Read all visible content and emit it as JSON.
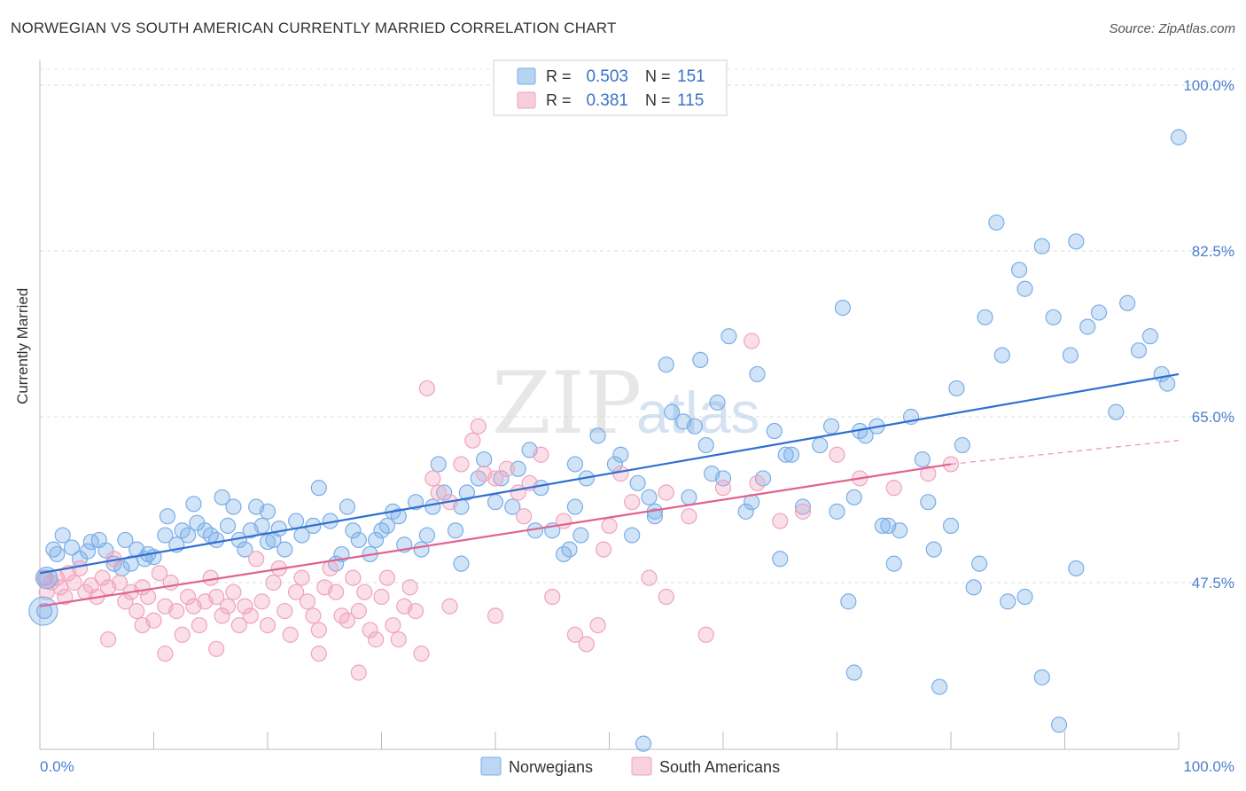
{
  "header": {
    "title": "NORWEGIAN VS SOUTH AMERICAN CURRENTLY MARRIED CORRELATION CHART",
    "source": "Source: ZipAtlas.com"
  },
  "watermark": {
    "zip": "ZIP",
    "atlas": "atlas"
  },
  "chart_data": {
    "type": "scatter",
    "ylabel": "Currently Married",
    "xlim": [
      0,
      100
    ],
    "ylim": [
      30,
      100
    ],
    "x_tick_labels": [
      "0.0%",
      "100.0%"
    ],
    "y_ticks": [
      47.5,
      65.0,
      82.5,
      100.0
    ],
    "y_tick_labels": [
      "47.5%",
      "65.0%",
      "82.5%",
      "100.0%"
    ],
    "grid": true,
    "legend_position": "top-center",
    "series": [
      {
        "name": "Norwegians",
        "color": "#7aaee8",
        "line_color": "#2f6fd0",
        "R": "0.503",
        "N": "151",
        "trend": {
          "x0": 0,
          "y0": 48.5,
          "x1": 100,
          "y1": 69.5
        },
        "points": [
          [
            0.4,
            44.5
          ],
          [
            0.5,
            48.0
          ],
          [
            1.2,
            51.0
          ],
          [
            1.5,
            50.5
          ],
          [
            2.0,
            52.5
          ],
          [
            2.8,
            51.2
          ],
          [
            3.5,
            50.0
          ],
          [
            4.2,
            50.8
          ],
          [
            4.5,
            51.8
          ],
          [
            5.2,
            52.0
          ],
          [
            5.8,
            50.9
          ],
          [
            6.5,
            49.5
          ],
          [
            7.2,
            49.0
          ],
          [
            7.5,
            52.0
          ],
          [
            8.5,
            51.0
          ],
          [
            9.2,
            50.0
          ],
          [
            10.0,
            50.2
          ],
          [
            11.0,
            52.5
          ],
          [
            11.2,
            54.5
          ],
          [
            12.0,
            51.5
          ],
          [
            12.5,
            53.0
          ],
          [
            13.0,
            52.5
          ],
          [
            13.5,
            55.8
          ],
          [
            13.8,
            53.8
          ],
          [
            14.5,
            53.0
          ],
          [
            15.0,
            52.5
          ],
          [
            15.5,
            52.0
          ],
          [
            16.5,
            53.5
          ],
          [
            17.0,
            55.5
          ],
          [
            17.5,
            52.0
          ],
          [
            18.0,
            51.0
          ],
          [
            18.5,
            53.0
          ],
          [
            19.0,
            55.5
          ],
          [
            19.5,
            53.5
          ],
          [
            20.0,
            51.8
          ],
          [
            20.5,
            52.0
          ],
          [
            21.0,
            53.2
          ],
          [
            21.5,
            51.0
          ],
          [
            22.5,
            54.0
          ],
          [
            23.0,
            52.5
          ],
          [
            24.0,
            53.5
          ],
          [
            24.5,
            57.5
          ],
          [
            25.5,
            54.0
          ],
          [
            26.0,
            49.5
          ],
          [
            27.0,
            55.5
          ],
          [
            27.5,
            53.0
          ],
          [
            28.0,
            52.0
          ],
          [
            29.0,
            50.5
          ],
          [
            29.5,
            52.0
          ],
          [
            30.5,
            53.5
          ],
          [
            31.0,
            55.0
          ],
          [
            31.5,
            54.5
          ],
          [
            32.0,
            51.5
          ],
          [
            33.0,
            56.0
          ],
          [
            34.0,
            52.5
          ],
          [
            34.5,
            55.5
          ],
          [
            35.0,
            60.0
          ],
          [
            35.5,
            57.0
          ],
          [
            36.5,
            53.0
          ],
          [
            37.0,
            55.5
          ],
          [
            37.5,
            57.0
          ],
          [
            38.5,
            58.5
          ],
          [
            39.0,
            60.5
          ],
          [
            40.0,
            56.0
          ],
          [
            40.5,
            58.5
          ],
          [
            41.5,
            55.5
          ],
          [
            42.0,
            59.5
          ],
          [
            43.0,
            61.5
          ],
          [
            44.0,
            57.5
          ],
          [
            45.0,
            53.0
          ],
          [
            46.0,
            50.5
          ],
          [
            47.0,
            55.5
          ],
          [
            47.5,
            52.5
          ],
          [
            48.0,
            58.5
          ],
          [
            49.0,
            63.0
          ],
          [
            50.5,
            60.0
          ],
          [
            51.0,
            61.0
          ],
          [
            52.0,
            52.5
          ],
          [
            52.5,
            58.0
          ],
          [
            53.5,
            56.5
          ],
          [
            54.0,
            55.0
          ],
          [
            55.0,
            70.5
          ],
          [
            55.5,
            65.5
          ],
          [
            56.5,
            64.5
          ],
          [
            57.0,
            56.5
          ],
          [
            57.5,
            64.0
          ],
          [
            58.5,
            62.0
          ],
          [
            59.0,
            59.0
          ],
          [
            60.0,
            58.5
          ],
          [
            60.5,
            73.5
          ],
          [
            62.0,
            55.0
          ],
          [
            62.5,
            56.0
          ],
          [
            63.0,
            69.5
          ],
          [
            63.5,
            58.5
          ],
          [
            64.5,
            63.5
          ],
          [
            65.0,
            50.0
          ],
          [
            66.0,
            61.0
          ],
          [
            67.0,
            55.5
          ],
          [
            68.5,
            62.0
          ],
          [
            69.5,
            64.0
          ],
          [
            70.0,
            55.0
          ],
          [
            70.5,
            76.5
          ],
          [
            71.5,
            56.5
          ],
          [
            71.0,
            45.5
          ],
          [
            72.0,
            63.5
          ],
          [
            72.5,
            63.0
          ],
          [
            73.5,
            64.0
          ],
          [
            74.0,
            53.5
          ],
          [
            75.0,
            49.5
          ],
          [
            75.5,
            53.0
          ],
          [
            76.5,
            65.0
          ],
          [
            77.5,
            60.5
          ],
          [
            78.0,
            56.0
          ],
          [
            78.5,
            51.0
          ],
          [
            79.0,
            36.5
          ],
          [
            80.0,
            53.5
          ],
          [
            80.5,
            68.0
          ],
          [
            81.0,
            62.0
          ],
          [
            82.0,
            47.0
          ],
          [
            82.5,
            49.5
          ],
          [
            83.0,
            75.5
          ],
          [
            84.0,
            85.5
          ],
          [
            84.5,
            71.5
          ],
          [
            86.0,
            80.5
          ],
          [
            86.5,
            78.5
          ],
          [
            88.0,
            83.0
          ],
          [
            89.0,
            75.5
          ],
          [
            90.5,
            71.5
          ],
          [
            91.0,
            83.5
          ],
          [
            92.0,
            74.5
          ],
          [
            93.0,
            76.0
          ],
          [
            94.5,
            65.5
          ],
          [
            95.5,
            77.0
          ],
          [
            96.5,
            72.0
          ],
          [
            97.5,
            73.5
          ],
          [
            98.5,
            69.5
          ],
          [
            99.0,
            68.5
          ],
          [
            100.0,
            94.5
          ],
          [
            46.5,
            51.0
          ],
          [
            43.5,
            53.0
          ],
          [
            37.0,
            49.5
          ],
          [
            33.5,
            51.0
          ],
          [
            30.0,
            53.0
          ],
          [
            26.5,
            50.5
          ],
          [
            20.0,
            55.0
          ],
          [
            16.0,
            56.5
          ],
          [
            8.0,
            49.5
          ],
          [
            9.5,
            50.5
          ],
          [
            47.0,
            60.0
          ],
          [
            54.0,
            54.5
          ],
          [
            59.5,
            66.5
          ],
          [
            58.0,
            71.0
          ],
          [
            65.5,
            61.0
          ],
          [
            74.5,
            53.5
          ],
          [
            86.5,
            46.0
          ],
          [
            88.0,
            37.5
          ],
          [
            89.5,
            32.5
          ],
          [
            85.0,
            45.5
          ],
          [
            91.0,
            49.0
          ],
          [
            71.5,
            38.0
          ],
          [
            53.0,
            30.5
          ]
        ]
      },
      {
        "name": "South Americans",
        "color": "#f0a3bd",
        "line_color": "#e0628e",
        "R": "0.381",
        "N": "115",
        "trend": {
          "x0": 0,
          "y0": 45.0,
          "x1": 80,
          "y1": 60.0
        },
        "trend_ext": {
          "x0": 80,
          "y0": 60.0,
          "x1": 100,
          "y1": 62.5
        },
        "points": [
          [
            0.3,
            48.0
          ],
          [
            0.6,
            46.5
          ],
          [
            1.0,
            47.5
          ],
          [
            1.5,
            48.0
          ],
          [
            1.8,
            47.0
          ],
          [
            2.2,
            46.0
          ],
          [
            2.5,
            48.5
          ],
          [
            3.0,
            47.5
          ],
          [
            3.5,
            49.0
          ],
          [
            4.0,
            46.5
          ],
          [
            4.5,
            47.2
          ],
          [
            5.0,
            46.0
          ],
          [
            5.5,
            48.0
          ],
          [
            6.0,
            47.0
          ],
          [
            6.5,
            50.0
          ],
          [
            7.0,
            47.5
          ],
          [
            7.5,
            45.5
          ],
          [
            8.0,
            46.5
          ],
          [
            8.5,
            44.5
          ],
          [
            9.0,
            47.0
          ],
          [
            9.5,
            46.0
          ],
          [
            10.0,
            43.5
          ],
          [
            10.5,
            48.5
          ],
          [
            11.0,
            45.0
          ],
          [
            11.5,
            47.5
          ],
          [
            12.0,
            44.5
          ],
          [
            12.5,
            42.0
          ],
          [
            13.0,
            46.0
          ],
          [
            13.5,
            45.0
          ],
          [
            14.0,
            43.0
          ],
          [
            14.5,
            45.5
          ],
          [
            15.0,
            48.0
          ],
          [
            15.5,
            46.0
          ],
          [
            16.0,
            44.0
          ],
          [
            16.5,
            45.0
          ],
          [
            17.0,
            46.5
          ],
          [
            17.5,
            43.0
          ],
          [
            18.0,
            45.0
          ],
          [
            18.5,
            44.0
          ],
          [
            19.0,
            50.0
          ],
          [
            19.5,
            45.5
          ],
          [
            20.0,
            43.0
          ],
          [
            20.5,
            47.5
          ],
          [
            21.0,
            49.0
          ],
          [
            21.5,
            44.5
          ],
          [
            22.0,
            42.0
          ],
          [
            22.5,
            46.5
          ],
          [
            23.0,
            48.0
          ],
          [
            23.5,
            45.5
          ],
          [
            24.0,
            44.0
          ],
          [
            24.5,
            42.5
          ],
          [
            25.0,
            47.0
          ],
          [
            25.5,
            49.0
          ],
          [
            26.0,
            46.5
          ],
          [
            26.5,
            44.0
          ],
          [
            27.0,
            43.5
          ],
          [
            27.5,
            48.0
          ],
          [
            28.0,
            44.5
          ],
          [
            28.5,
            46.5
          ],
          [
            29.0,
            42.5
          ],
          [
            29.5,
            41.5
          ],
          [
            30.0,
            46.0
          ],
          [
            30.5,
            48.0
          ],
          [
            31.0,
            43.0
          ],
          [
            31.5,
            41.5
          ],
          [
            32.0,
            45.0
          ],
          [
            32.5,
            47.0
          ],
          [
            33.0,
            44.5
          ],
          [
            34.0,
            68.0
          ],
          [
            34.5,
            58.5
          ],
          [
            35.0,
            57.0
          ],
          [
            36.0,
            56.0
          ],
          [
            37.0,
            60.0
          ],
          [
            38.0,
            62.5
          ],
          [
            38.5,
            64.0
          ],
          [
            39.0,
            59.0
          ],
          [
            40.0,
            58.5
          ],
          [
            41.0,
            59.5
          ],
          [
            42.0,
            57.0
          ],
          [
            42.5,
            54.5
          ],
          [
            43.0,
            58.0
          ],
          [
            44.0,
            61.0
          ],
          [
            45.0,
            46.0
          ],
          [
            46.0,
            54.0
          ],
          [
            47.0,
            42.0
          ],
          [
            48.0,
            41.0
          ],
          [
            49.0,
            43.0
          ],
          [
            50.0,
            53.5
          ],
          [
            51.0,
            59.0
          ],
          [
            52.0,
            56.0
          ],
          [
            55.0,
            57.0
          ],
          [
            57.0,
            54.5
          ],
          [
            60.0,
            57.5
          ],
          [
            63.0,
            58.0
          ],
          [
            65.0,
            54.0
          ],
          [
            67.0,
            55.0
          ],
          [
            70.0,
            61.0
          ],
          [
            72.0,
            58.5
          ],
          [
            75.0,
            57.5
          ],
          [
            78.0,
            59.0
          ],
          [
            80.0,
            60.0
          ],
          [
            62.5,
            73.0
          ],
          [
            49.5,
            51.0
          ],
          [
            53.5,
            48.0
          ],
          [
            24.5,
            40.0
          ],
          [
            28.0,
            38.0
          ],
          [
            11.0,
            40.0
          ],
          [
            15.5,
            40.5
          ],
          [
            6.0,
            41.5
          ],
          [
            9.0,
            43.0
          ],
          [
            55.0,
            46.0
          ],
          [
            58.5,
            42.0
          ],
          [
            40.0,
            44.0
          ],
          [
            36.0,
            45.0
          ],
          [
            33.5,
            40.0
          ]
        ]
      }
    ]
  }
}
